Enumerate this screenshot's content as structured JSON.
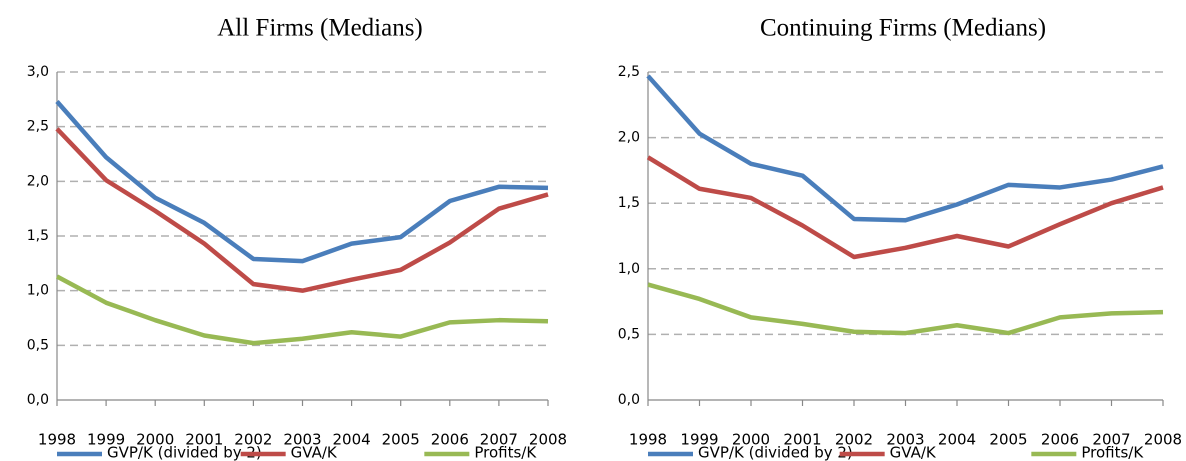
{
  "chart_data": [
    {
      "type": "line",
      "title": "All Firms (Medians)",
      "categories": [
        "1998",
        "1999",
        "2000",
        "2001",
        "2002",
        "2003",
        "2004",
        "2005",
        "2006",
        "2007",
        "2008"
      ],
      "series": [
        {
          "name": "GVP/K (divided by 2)",
          "color": "#4a7ebb",
          "values": [
            2.73,
            2.22,
            1.85,
            1.62,
            1.29,
            1.27,
            1.43,
            1.49,
            1.82,
            1.95,
            1.94
          ]
        },
        {
          "name": "GVA/K",
          "color": "#be4b48",
          "values": [
            2.48,
            2.01,
            1.73,
            1.43,
            1.06,
            1.0,
            1.1,
            1.19,
            1.44,
            1.75,
            1.88
          ]
        },
        {
          "name": "Profits/K",
          "color": "#98b954",
          "values": [
            1.13,
            0.89,
            0.73,
            0.59,
            0.52,
            0.56,
            0.62,
            0.58,
            0.71,
            0.73,
            0.72
          ]
        }
      ],
      "ylim": [
        0,
        3
      ],
      "yticks": [
        {
          "value": 0,
          "label": "0,0"
        },
        {
          "value": 0.5,
          "label": "0,5"
        },
        {
          "value": 1,
          "label": "1,0"
        },
        {
          "value": 1.5,
          "label": "1,5"
        },
        {
          "value": 2,
          "label": "2,0"
        },
        {
          "value": 2.5,
          "label": "2,5"
        },
        {
          "value": 3,
          "label": "3,0"
        }
      ],
      "grid": true,
      "legend": "bottom"
    },
    {
      "type": "line",
      "title": "Continuing Firms (Medians)",
      "categories": [
        "1998",
        "1999",
        "2000",
        "2001",
        "2002",
        "2003",
        "2004",
        "2005",
        "2006",
        "2007",
        "2008"
      ],
      "series": [
        {
          "name": "GVP/K (divided by 2)",
          "color": "#4a7ebb",
          "values": [
            2.47,
            2.03,
            1.8,
            1.71,
            1.38,
            1.37,
            1.49,
            1.64,
            1.62,
            1.68,
            1.78
          ]
        },
        {
          "name": "GVA/K",
          "color": "#be4b48",
          "values": [
            1.85,
            1.61,
            1.54,
            1.33,
            1.09,
            1.16,
            1.25,
            1.17,
            1.34,
            1.5,
            1.62
          ]
        },
        {
          "name": "Profits/K",
          "color": "#98b954",
          "values": [
            0.88,
            0.77,
            0.63,
            0.58,
            0.52,
            0.51,
            0.57,
            0.51,
            0.63,
            0.66,
            0.67
          ]
        }
      ],
      "ylim": [
        0,
        2.5
      ],
      "yticks": [
        {
          "value": 0,
          "label": "0,0"
        },
        {
          "value": 0.5,
          "label": "0,5"
        },
        {
          "value": 1,
          "label": "1,0"
        },
        {
          "value": 1.5,
          "label": "1,5"
        },
        {
          "value": 2,
          "label": "2,0"
        },
        {
          "value": 2.5,
          "label": "2,5"
        }
      ],
      "grid": true,
      "legend": "bottom"
    }
  ]
}
